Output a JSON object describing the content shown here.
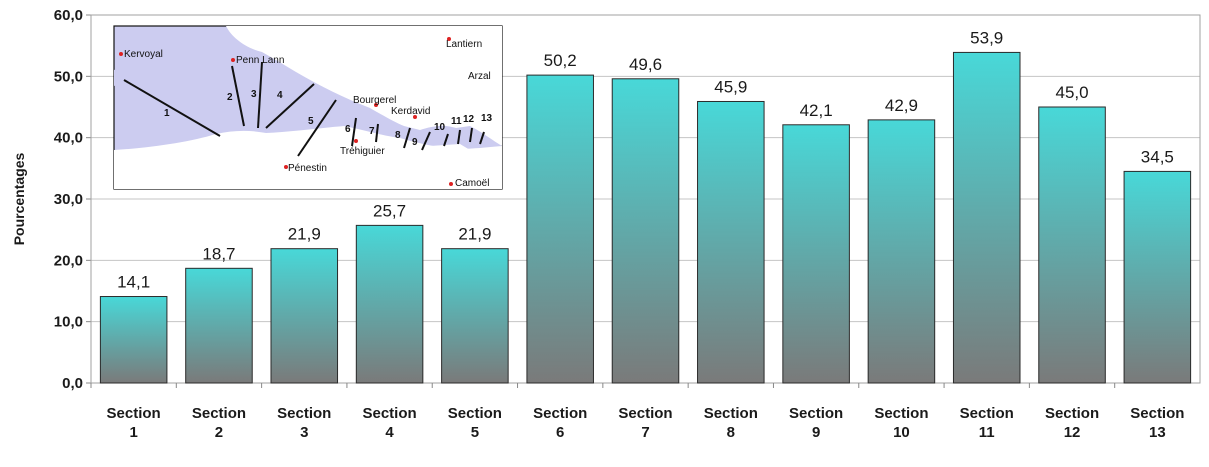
{
  "chart_data": {
    "type": "bar",
    "ylabel": "Pourcentages",
    "xlabel": "",
    "title": "",
    "ylim": [
      0,
      60
    ],
    "yticks": [
      "0,0",
      "10,0",
      "20,0",
      "30,0",
      "40,0",
      "50,0",
      "60,0"
    ],
    "grid": "horizontal",
    "categories": [
      [
        "Section",
        "1"
      ],
      [
        "Section",
        "2"
      ],
      [
        "Section",
        "3"
      ],
      [
        "Section",
        "4"
      ],
      [
        "Section",
        "5"
      ],
      [
        "Section",
        "6"
      ],
      [
        "Section",
        "7"
      ],
      [
        "Section",
        "8"
      ],
      [
        "Section",
        "9"
      ],
      [
        "Section",
        "10"
      ],
      [
        "Section",
        "11"
      ],
      [
        "Section",
        "12"
      ],
      [
        "Section",
        "13"
      ]
    ],
    "values": [
      14.1,
      18.7,
      21.9,
      25.7,
      21.9,
      50.2,
      49.6,
      45.9,
      42.1,
      42.9,
      53.9,
      45.0,
      34.5
    ],
    "data_labels": [
      "14,1",
      "18,7",
      "21,9",
      "25,7",
      "21,9",
      "50,2",
      "49,6",
      "45,9",
      "42,1",
      "42,9",
      "53,9",
      "45,0",
      "34,5"
    ],
    "bar_gradient": {
      "top": "#48d8d8",
      "bottom": "#7a7a7a"
    }
  },
  "inset_map": {
    "places": [
      "Kervoyal",
      "Penn Lann",
      "Lantiern",
      "Arzal",
      "Bourgerel",
      "Kerdavid",
      "Tréhiguier",
      "Pénestin",
      "Camoël"
    ],
    "section_numbers": [
      "1",
      "2",
      "3",
      "4",
      "5",
      "6",
      "7",
      "8",
      "9",
      "10",
      "11",
      "12",
      "13"
    ],
    "colors": {
      "water": "#ccccf0",
      "land": "#ffffff",
      "marker": "#dd2222"
    }
  }
}
